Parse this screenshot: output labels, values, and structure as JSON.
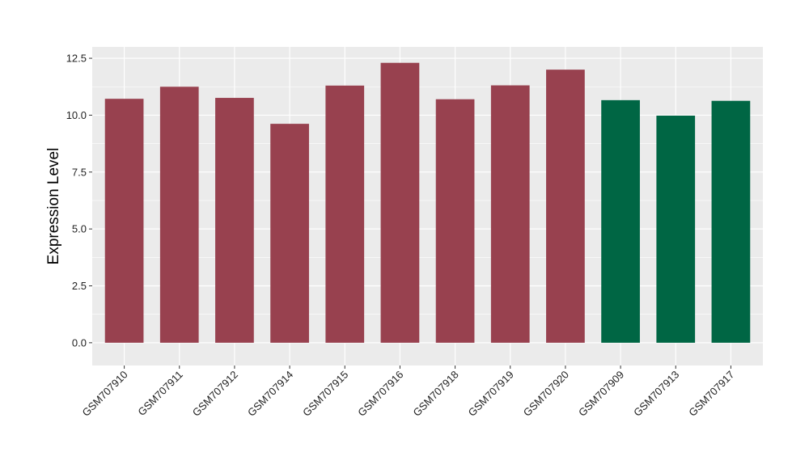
{
  "chart_data": {
    "type": "bar",
    "title": "",
    "xlabel": "",
    "ylabel": "Expression Level",
    "ylim": [
      -1.0,
      13.0
    ],
    "y_ticks": [
      0.0,
      2.5,
      5.0,
      7.5,
      10.0,
      12.5
    ],
    "y_tick_labels": [
      "0.0",
      "2.5",
      "5.0",
      "7.5",
      "10.0",
      "12.5"
    ],
    "grid": true,
    "legend": "none",
    "categories": [
      "GSM707910",
      "GSM707911",
      "GSM707912",
      "GSM707914",
      "GSM707915",
      "GSM707916",
      "GSM707918",
      "GSM707919",
      "GSM707920",
      "GSM707909",
      "GSM707913",
      "GSM707917"
    ],
    "values": [
      10.72,
      11.25,
      10.76,
      9.62,
      11.3,
      12.3,
      10.7,
      11.31,
      12.0,
      10.66,
      9.98,
      10.63
    ],
    "group_colors": [
      "#98414f",
      "#98414f",
      "#98414f",
      "#98414f",
      "#98414f",
      "#98414f",
      "#98414f",
      "#98414f",
      "#98414f",
      "#006644",
      "#006644",
      "#006644"
    ],
    "panel_background": "#ebebeb",
    "gridline_color": "#ffffff"
  }
}
